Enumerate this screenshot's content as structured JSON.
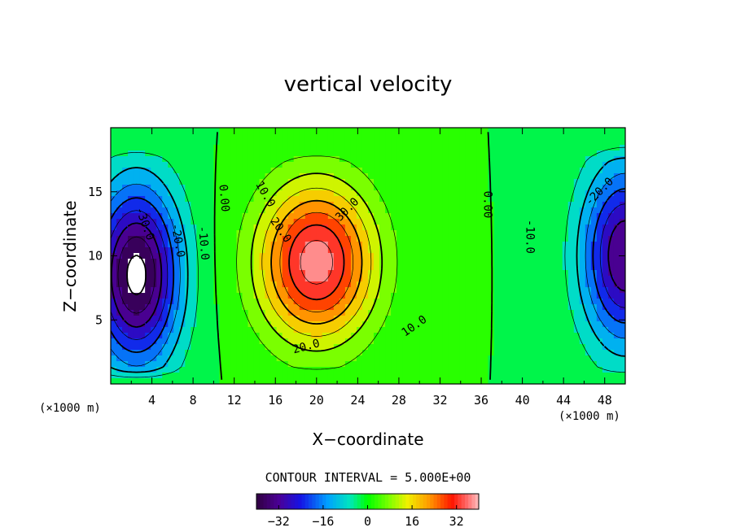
{
  "chart_data": {
    "type": "heatmap",
    "title": "vertical velocity",
    "xlabel": "X−coordinate",
    "ylabel": "Z−coordinate",
    "x_unit": "(×1000 m)",
    "y_unit": "(×1000 m)",
    "xlim": [
      0,
      50
    ],
    "ylim": [
      0,
      20
    ],
    "x_ticks": [
      "4",
      "8",
      "12",
      "16",
      "20",
      "24",
      "28",
      "32",
      "36",
      "40",
      "44",
      "48"
    ],
    "y_ticks": [
      "5",
      "10",
      "15"
    ],
    "contour_interval_text": "CONTOUR INTERVAL = 5.000E+00",
    "contour_interval": 5,
    "contour_labels": [
      "-30.0",
      "-20.0",
      "-10.0",
      "0.00",
      "10.0",
      "20.0",
      "30.0",
      "0.00",
      "10.0",
      "20.0",
      "-10.0",
      "-20.0"
    ],
    "extrema": [
      {
        "kind": "max",
        "x": 20,
        "z": 9.5,
        "value": 38
      },
      {
        "kind": "min",
        "x": 2.5,
        "z": 8.5,
        "value": -42
      },
      {
        "kind": "min",
        "x": 50,
        "z": 10,
        "value": -35
      }
    ],
    "colorbar": {
      "ticks": [
        "−32",
        "−16",
        "0",
        "16",
        "32"
      ],
      "tick_values": [
        -32,
        -16,
        0,
        16,
        32
      ],
      "range": [
        -40,
        40
      ],
      "colormap": "rainbow"
    }
  }
}
